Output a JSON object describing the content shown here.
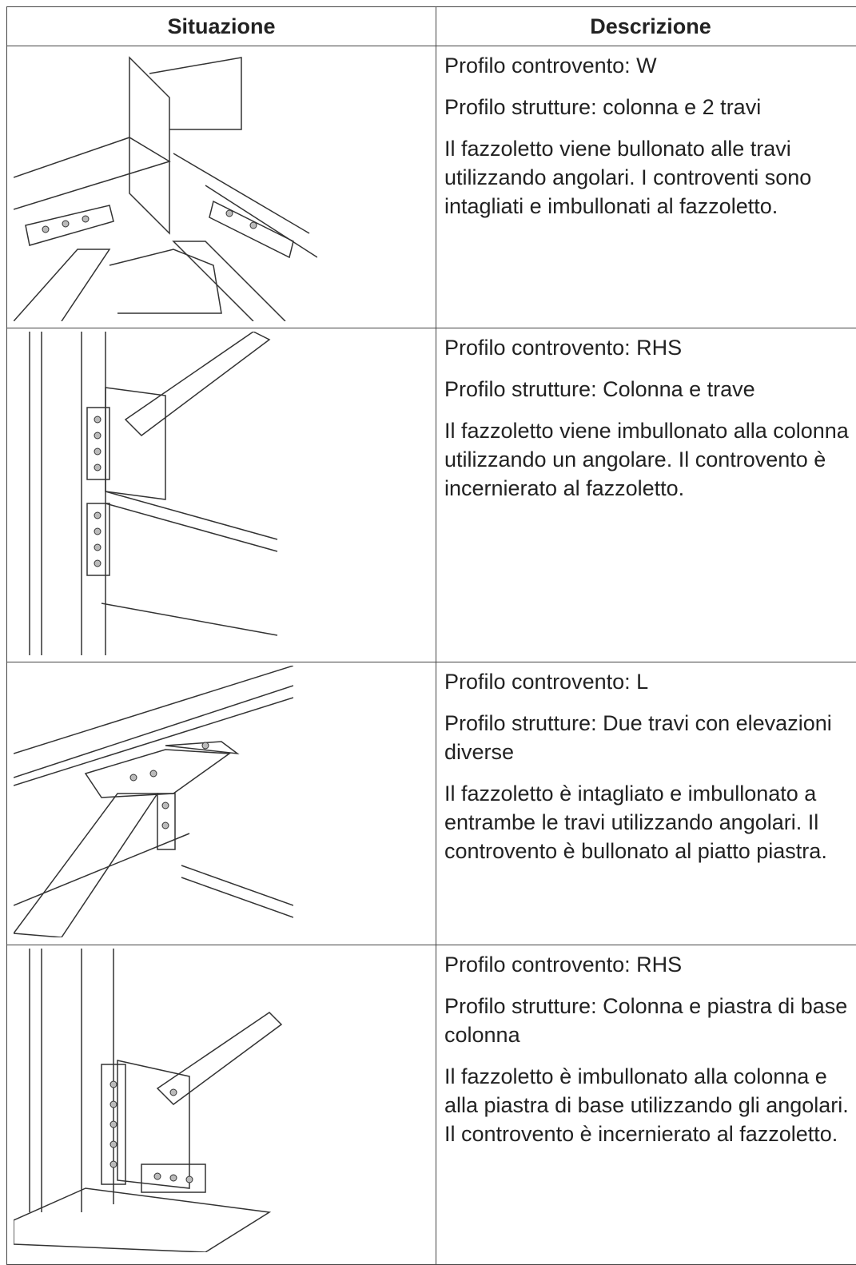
{
  "table": {
    "header": [
      "Situazione",
      "Descrizione"
    ],
    "rows": [
      {
        "description": [
          "Profilo controvento: W",
          "Profilo strutture: colonna e 2 travi",
          "Il fazzoletto viene bullonato alle travi utilizzando angolari. I controventi sono intagliati e imbullonati al fazzoletto."
        ]
      },
      {
        "description": [
          "Profilo controvento: RHS",
          "Profilo strutture: Colonna e trave",
          "Il fazzoletto viene imbullonato alla colonna utilizzando un angolare. Il controvento è incernierato al fazzoletto."
        ]
      },
      {
        "description": [
          "Profilo controvento: L",
          "Profilo strutture: Due travi con elevazioni diverse",
          "Il fazzoletto è intagliato e imbullonato a entrambe le travi utilizzando angolari. Il controvento è bullonato al piatto piastra."
        ]
      },
      {
        "description": [
          "Profilo controvento: RHS",
          "Profilo strutture: Colonna e piastra di base colonna",
          "Il fazzoletto è imbullonato alla colonna e alla piastra di base utilizzando gli angolari. Il controvento è incernierato al fazzoletto."
        ]
      }
    ]
  }
}
